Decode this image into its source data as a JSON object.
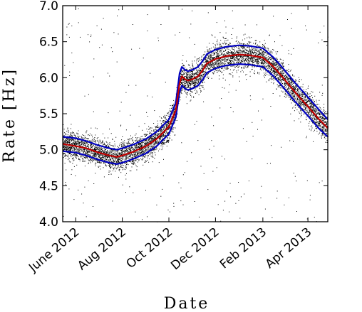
{
  "chart_data": {
    "type": "scatter",
    "xlabel": "Date",
    "ylabel": "Rate [Hz]",
    "x_ticks": [
      "June 2012",
      "Aug  2012",
      "Oct 2012",
      "Dec 2012",
      "Feb 2013",
      "Apr 2013"
    ],
    "x_tick_dates": [
      "2012-06-01",
      "2012-08-01",
      "2012-10-01",
      "2012-12-01",
      "2013-02-01",
      "2013-04-01"
    ],
    "xlim": [
      "2012-05-15",
      "2013-04-27"
    ],
    "y_ticks": [
      "4.0",
      "4.5",
      "5.0",
      "5.5",
      "6.0",
      "6.5",
      "7.0"
    ],
    "ylim": [
      4.0,
      7.0
    ],
    "grid": false,
    "legend": "none",
    "series": [
      {
        "role": "scattered rate measurements",
        "color": "#000000",
        "marker": "dot"
      },
      {
        "role": "median",
        "color": "#c00000",
        "x": [
          "2012-05-15",
          "2012-06-01",
          "2012-06-15",
          "2012-07-01",
          "2012-07-15",
          "2012-07-25",
          "2012-08-01",
          "2012-08-15",
          "2012-09-01",
          "2012-09-15",
          "2012-10-01",
          "2012-10-10",
          "2012-10-15",
          "2012-10-18",
          "2012-10-22",
          "2012-10-26",
          "2012-11-01",
          "2012-11-08",
          "2012-11-14",
          "2012-11-20",
          "2012-12-01",
          "2012-12-15",
          "2013-01-01",
          "2013-01-15",
          "2013-02-01",
          "2013-02-15",
          "2013-03-01",
          "2013-03-15",
          "2013-04-01",
          "2013-04-15",
          "2013-04-27"
        ],
        "y": [
          5.08,
          5.05,
          5.02,
          4.96,
          4.92,
          4.9,
          4.92,
          4.97,
          5.05,
          5.15,
          5.32,
          5.55,
          5.92,
          6.02,
          5.98,
          5.96,
          5.98,
          6.02,
          6.1,
          6.2,
          6.26,
          6.3,
          6.32,
          6.31,
          6.28,
          6.15,
          5.98,
          5.8,
          5.6,
          5.43,
          5.3
        ]
      },
      {
        "role": "upper band",
        "color": "#0000c0",
        "x": [
          "2012-05-15",
          "2012-06-01",
          "2012-06-15",
          "2012-07-01",
          "2012-07-15",
          "2012-07-25",
          "2012-08-01",
          "2012-08-15",
          "2012-09-01",
          "2012-09-15",
          "2012-10-01",
          "2012-10-10",
          "2012-10-15",
          "2012-10-18",
          "2012-10-22",
          "2012-10-26",
          "2012-11-01",
          "2012-11-08",
          "2012-11-14",
          "2012-11-20",
          "2012-12-01",
          "2012-12-15",
          "2013-01-01",
          "2013-01-15",
          "2013-02-01",
          "2013-02-15",
          "2013-03-01",
          "2013-03-15",
          "2013-04-01",
          "2013-04-15",
          "2013-04-27"
        ],
        "y": [
          5.18,
          5.16,
          5.12,
          5.06,
          5.02,
          5.0,
          5.02,
          5.07,
          5.15,
          5.25,
          5.42,
          5.65,
          6.06,
          6.15,
          6.11,
          6.09,
          6.11,
          6.15,
          6.23,
          6.33,
          6.39,
          6.43,
          6.45,
          6.44,
          6.41,
          6.28,
          6.11,
          5.93,
          5.73,
          5.56,
          5.42
        ]
      },
      {
        "role": "lower band",
        "color": "#0000c0",
        "x": [
          "2012-05-15",
          "2012-06-01",
          "2012-06-15",
          "2012-07-01",
          "2012-07-15",
          "2012-07-25",
          "2012-08-01",
          "2012-08-15",
          "2012-09-01",
          "2012-09-15",
          "2012-10-01",
          "2012-10-10",
          "2012-10-15",
          "2012-10-18",
          "2012-10-22",
          "2012-10-26",
          "2012-11-01",
          "2012-11-08",
          "2012-11-14",
          "2012-11-20",
          "2012-12-01",
          "2012-12-15",
          "2013-01-01",
          "2013-01-15",
          "2013-02-01",
          "2013-02-15",
          "2013-03-01",
          "2013-03-15",
          "2013-04-01",
          "2013-04-15",
          "2013-04-27"
        ],
        "y": [
          4.98,
          4.96,
          4.92,
          4.86,
          4.82,
          4.8,
          4.82,
          4.87,
          4.95,
          5.05,
          5.22,
          5.45,
          5.8,
          5.89,
          5.85,
          5.83,
          5.85,
          5.89,
          5.97,
          6.07,
          6.13,
          6.17,
          6.19,
          6.18,
          6.15,
          6.02,
          5.85,
          5.67,
          5.47,
          5.3,
          5.18
        ]
      }
    ]
  }
}
